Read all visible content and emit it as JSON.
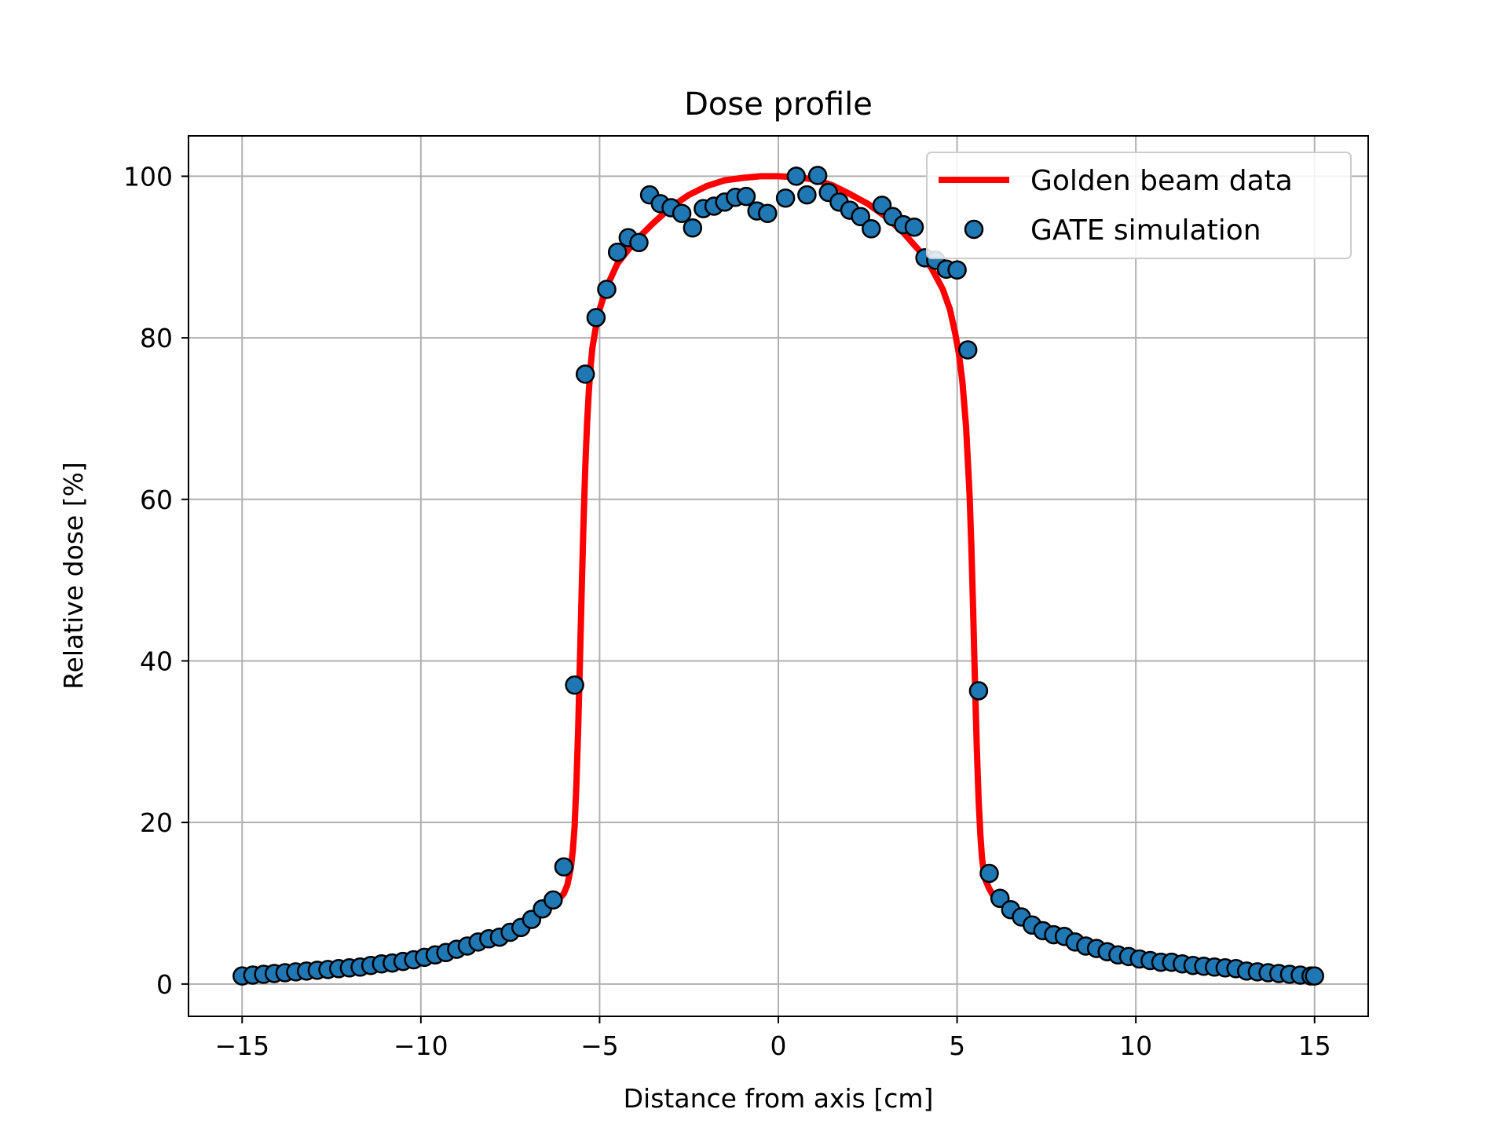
{
  "chart_data": {
    "type": "scatter",
    "title": "Dose profile",
    "xlabel": "Distance from axis [cm]",
    "ylabel": "Relative dose [%]",
    "xlim": [
      -16.5,
      16.5
    ],
    "ylim": [
      -4,
      105
    ],
    "xticks": [
      -15,
      -10,
      -5,
      0,
      5,
      10,
      15
    ],
    "xtick_labels": [
      "−15",
      "−10",
      "−5",
      "0",
      "5",
      "10",
      "15"
    ],
    "yticks": [
      0,
      20,
      40,
      60,
      80,
      100
    ],
    "ytick_labels": [
      "0",
      "20",
      "40",
      "60",
      "80",
      "100"
    ],
    "grid": true,
    "legend_position": "top-right",
    "series": [
      {
        "name": "Golden beam data",
        "kind": "line",
        "color": "#ff0000",
        "x": [
          -10.5,
          -10.0,
          -9.5,
          -9.0,
          -8.5,
          -8.0,
          -7.5,
          -7.0,
          -6.5,
          -6.25,
          -6.0,
          -5.9,
          -5.8,
          -5.75,
          -5.7,
          -5.65,
          -5.6,
          -5.55,
          -5.5,
          -5.45,
          -5.4,
          -5.35,
          -5.3,
          -5.25,
          -5.2,
          -5.1,
          -5.0,
          -4.8,
          -4.5,
          -4.0,
          -3.5,
          -3.0,
          -2.5,
          -2.0,
          -1.5,
          -1.0,
          -0.5,
          0.0,
          0.5,
          1.0,
          1.5,
          2.0,
          2.5,
          3.0,
          3.5,
          4.0,
          4.3,
          4.6,
          4.8,
          4.95,
          5.05,
          5.15,
          5.25,
          5.35,
          5.4,
          5.45,
          5.5,
          5.55,
          5.6,
          5.65,
          5.7,
          5.75,
          5.8,
          5.9,
          6.0,
          6.25,
          6.5,
          7.0,
          7.5,
          8.0,
          8.5,
          9.0,
          9.5,
          10.0,
          10.5
        ],
        "y": [
          3.2,
          3.6,
          4.1,
          4.6,
          5.2,
          5.9,
          6.8,
          7.8,
          9.1,
          10.0,
          11.2,
          12.3,
          14.5,
          16.5,
          19.5,
          24.5,
          31.5,
          40.0,
          49.0,
          57.0,
          64.0,
          69.5,
          73.5,
          76.5,
          78.8,
          81.5,
          83.5,
          86.3,
          89.2,
          92.0,
          94.2,
          96.2,
          97.7,
          98.8,
          99.5,
          99.8,
          100.0,
          100.0,
          99.9,
          99.6,
          98.9,
          97.8,
          96.6,
          95.0,
          93.0,
          90.5,
          88.5,
          86.0,
          83.5,
          80.5,
          78.0,
          74.5,
          69.0,
          60.5,
          54.0,
          46.0,
          37.5,
          29.5,
          23.0,
          18.5,
          15.5,
          13.8,
          12.8,
          11.8,
          11.0,
          10.0,
          9.1,
          7.8,
          6.8,
          5.9,
          5.2,
          4.6,
          4.1,
          3.6,
          3.2
        ]
      },
      {
        "name": "GATE simulation",
        "kind": "scatter",
        "color": "#1f77b4",
        "edgecolor": "#000000",
        "x": [
          -15.0,
          -14.7,
          -14.4,
          -14.1,
          -13.8,
          -13.5,
          -13.2,
          -12.9,
          -12.6,
          -12.3,
          -12.0,
          -11.7,
          -11.4,
          -11.1,
          -10.8,
          -10.5,
          -10.2,
          -9.9,
          -9.6,
          -9.3,
          -9.0,
          -8.7,
          -8.4,
          -8.1,
          -7.8,
          -7.5,
          -7.2,
          -6.9,
          -6.6,
          -6.3,
          -6.0,
          -5.7,
          -5.4,
          -5.1,
          -4.8,
          -4.5,
          -4.2,
          -3.9,
          -3.6,
          -3.3,
          -3.0,
          -2.7,
          -2.4,
          -2.1,
          -1.8,
          -1.5,
          -1.2,
          -0.9,
          -0.6,
          -0.3,
          0.2,
          0.5,
          0.8,
          1.1,
          1.4,
          1.7,
          2.0,
          2.3,
          2.6,
          2.9,
          3.2,
          3.5,
          3.8,
          4.1,
          4.4,
          4.7,
          5.0,
          5.3,
          5.6,
          5.9,
          6.2,
          6.5,
          6.8,
          7.1,
          7.4,
          7.7,
          8.0,
          8.3,
          8.6,
          8.9,
          9.2,
          9.5,
          9.8,
          10.1,
          10.4,
          10.7,
          11.0,
          11.3,
          11.6,
          11.9,
          12.2,
          12.5,
          12.8,
          13.1,
          13.4,
          13.7,
          14.0,
          14.3,
          14.6,
          14.9,
          15.0
        ],
        "y": [
          1.0,
          1.1,
          1.2,
          1.3,
          1.4,
          1.5,
          1.6,
          1.7,
          1.8,
          1.9,
          2.0,
          2.1,
          2.3,
          2.5,
          2.6,
          2.8,
          3.0,
          3.3,
          3.6,
          3.9,
          4.3,
          4.7,
          5.2,
          5.6,
          5.8,
          6.4,
          7.0,
          8.0,
          9.3,
          10.4,
          14.5,
          37.0,
          75.5,
          82.5,
          86.0,
          90.6,
          92.4,
          91.8,
          97.7,
          96.6,
          96.1,
          95.4,
          93.6,
          96.0,
          96.3,
          96.8,
          97.4,
          97.5,
          95.7,
          95.4,
          97.3,
          100.0,
          97.7,
          100.1,
          98.0,
          96.8,
          95.8,
          95.0,
          93.5,
          96.4,
          95.0,
          94.0,
          93.7,
          89.9,
          89.6,
          88.5,
          88.4,
          78.5,
          36.3,
          13.7,
          10.6,
          9.2,
          8.3,
          7.3,
          6.6,
          6.1,
          5.9,
          5.2,
          4.7,
          4.4,
          4.0,
          3.6,
          3.4,
          3.1,
          2.9,
          2.7,
          2.7,
          2.5,
          2.3,
          2.2,
          2.1,
          2.0,
          1.9,
          1.6,
          1.5,
          1.4,
          1.3,
          1.2,
          1.1,
          1.0,
          1.0
        ]
      }
    ]
  }
}
